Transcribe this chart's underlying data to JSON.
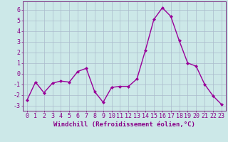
{
  "x": [
    0,
    1,
    2,
    3,
    4,
    5,
    6,
    7,
    8,
    9,
    10,
    11,
    12,
    13,
    14,
    15,
    16,
    17,
    18,
    19,
    20,
    21,
    22,
    23
  ],
  "y": [
    -2.5,
    -0.8,
    -1.8,
    -0.9,
    -0.7,
    -0.8,
    0.2,
    0.5,
    -1.7,
    -2.7,
    -1.3,
    -1.2,
    -1.2,
    -0.5,
    2.2,
    5.1,
    6.2,
    5.4,
    3.1,
    1.0,
    0.7,
    -1.0,
    -2.1,
    -2.9
  ],
  "line_color": "#990099",
  "marker": "D",
  "marker_size": 2.0,
  "bg_color": "#cce8e8",
  "grid_color": "#aabbcc",
  "axis_color": "#660066",
  "tick_color": "#880088",
  "xlabel": "Windchill (Refroidissement éolien,°C)",
  "xlabel_color": "#880088",
  "xlabel_fontsize": 6.5,
  "tick_fontsize": 6.0,
  "ylim": [
    -3.5,
    6.8
  ],
  "yticks": [
    -3,
    -2,
    -1,
    0,
    1,
    2,
    3,
    4,
    5,
    6
  ],
  "line_width": 1.0
}
